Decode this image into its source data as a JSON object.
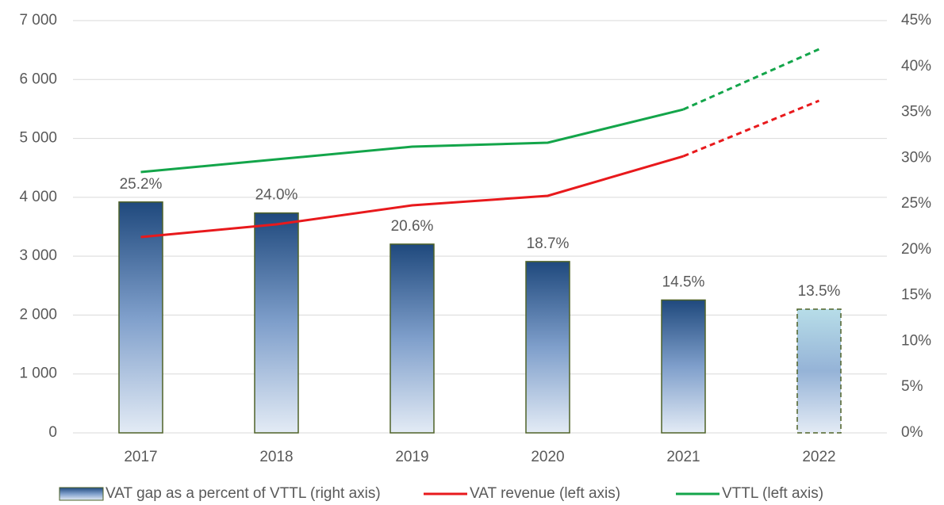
{
  "chart_data": {
    "type": "bar-line",
    "categories": [
      "2017",
      "2018",
      "2019",
      "2020",
      "2021",
      "2022"
    ],
    "projected": [
      false,
      false,
      false,
      false,
      false,
      true
    ],
    "ylim": [
      0,
      7000
    ],
    "yticks": [
      0,
      {
        "value": 1000,
        "label": "1 000"
      },
      {
        "value": 2000,
        "label": "2 000"
      },
      {
        "value": 3000,
        "label": "3 000"
      },
      {
        "value": 4000,
        "label": "4 000"
      },
      {
        "value": 5000,
        "label": "5 000"
      },
      {
        "value": 6000,
        "label": "6 000"
      },
      {
        "value": 7000,
        "label": "7 000"
      }
    ],
    "y2lim": [
      0,
      45
    ],
    "y2ticks": [
      {
        "value": 0,
        "label": "0%"
      },
      {
        "value": 5,
        "label": "5%"
      },
      {
        "value": 10,
        "label": "10%"
      },
      {
        "value": 15,
        "label": "15%"
      },
      {
        "value": 20,
        "label": "20%"
      },
      {
        "value": 25,
        "label": "25%"
      },
      {
        "value": 30,
        "label": "30%"
      },
      {
        "value": 35,
        "label": "35%"
      },
      {
        "value": 40,
        "label": "40%"
      },
      {
        "value": 45,
        "label": "45%"
      }
    ],
    "grid": true,
    "legend": "bottom",
    "series": [
      {
        "name": "VAT gap as a percent of VTTL (right axis)",
        "type": "bar",
        "axis": "y2",
        "color": "#1f497d",
        "values": [
          25.2,
          24.0,
          20.6,
          18.7,
          14.5,
          13.5
        ],
        "value_labels": [
          "25.2%",
          "24.0%",
          "20.6%",
          "18.7%",
          "14.5%",
          "13.5%"
        ]
      },
      {
        "name": "VAT revenue (left axis)",
        "type": "line",
        "color": "#e8191c",
        "values": [
          3325,
          3540,
          3863,
          4025,
          4698,
          5640
        ]
      },
      {
        "name": "VTTL (left axis)",
        "type": "line",
        "color": "#13a54a",
        "values": [
          4429,
          4644,
          4859,
          4927,
          5492,
          6515
        ]
      }
    ]
  }
}
